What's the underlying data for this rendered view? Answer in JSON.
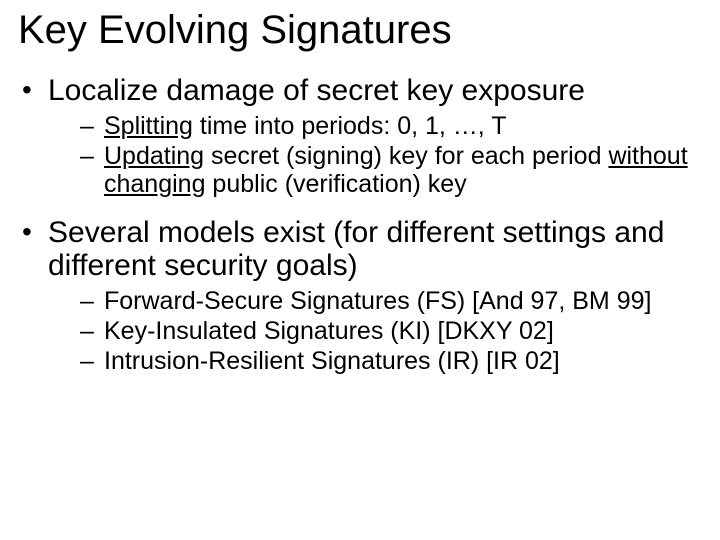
{
  "slide": {
    "title": "Key Evolving Signatures",
    "title_fontsize": 40,
    "bullets": [
      {
        "text": "Localize damage of secret key exposure",
        "fontsize": 30,
        "sub": [
          {
            "dash": "–",
            "pre": "Splitting",
            "post": " time into periods: 0, 1, …, T"
          },
          {
            "dash": "–",
            "pre": "Updating",
            "mid": " secret (signing) key for each period ",
            "u2": "without changing",
            "post2": " public (verification) key"
          }
        ]
      },
      {
        "text": "Several models exist (for different settings and different security goals)",
        "fontsize": 30,
        "sub": [
          {
            "plain": "Forward-Secure Signatures (FS)  [And 97, BM 99]"
          },
          {
            "plain": "Key-Insulated Signatures (KI)  [DKXY 02]"
          },
          {
            "plain": "Intrusion-Resilient Signatures (IR)  [IR 02]"
          }
        ]
      }
    ],
    "colors": {
      "text": "#000000",
      "background": "#ffffff"
    },
    "font_family": "Comic Sans MS",
    "level2_fontsize": 25
  }
}
